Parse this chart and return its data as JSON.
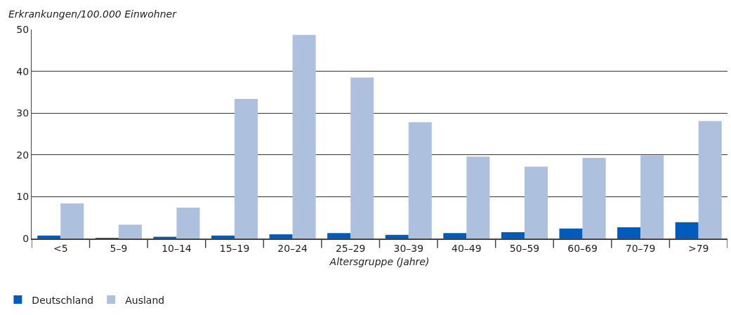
{
  "chart_data": {
    "type": "bar",
    "ylabel": "Erkrankungen/100.000 Einwohner",
    "xlabel": "Altersgruppe (Jahre)",
    "categories": [
      "<5",
      "5–9",
      "10–14",
      "15–19",
      "20–24",
      "25–29",
      "30–39",
      "40–49",
      "50–59",
      "60–69",
      "70–79",
      ">79"
    ],
    "series": [
      {
        "name": "Deutschland",
        "color": "#005bbb",
        "values": [
          0.7,
          0.1,
          0.4,
          0.7,
          1.0,
          1.3,
          0.9,
          1.3,
          1.5,
          2.4,
          2.7,
          3.9
        ]
      },
      {
        "name": "Ausland",
        "color": "#adc1df",
        "values": [
          8.4,
          3.3,
          7.4,
          33.4,
          48.7,
          38.5,
          27.8,
          19.6,
          17.2,
          19.3,
          19.9,
          28.1
        ]
      }
    ],
    "ylim": [
      0,
      50
    ],
    "yticks": [
      0,
      10,
      20,
      30,
      40,
      50
    ],
    "grid": "y",
    "legend": "bottom left"
  }
}
